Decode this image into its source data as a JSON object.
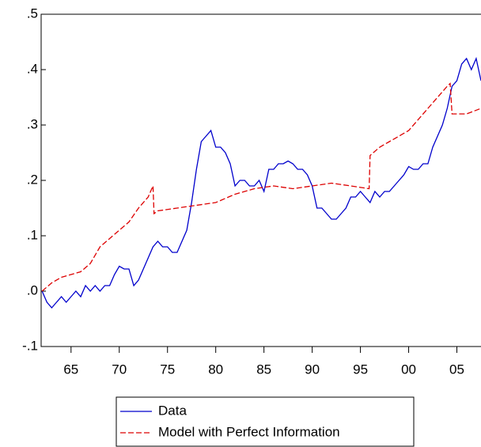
{
  "chart_data": {
    "type": "line",
    "xlim": [
      1961.9,
      2007.5
    ],
    "xticks": [
      {
        "value": 1965,
        "label": "65"
      },
      {
        "value": 1970,
        "label": "70"
      },
      {
        "value": 1975,
        "label": "75"
      },
      {
        "value": 1980,
        "label": "80"
      },
      {
        "value": 1985,
        "label": "85"
      },
      {
        "value": 1990,
        "label": "90"
      },
      {
        "value": 1995,
        "label": "95"
      },
      {
        "value": 2000,
        "label": "00"
      },
      {
        "value": 2005,
        "label": "05"
      }
    ],
    "ylim": [
      -0.1,
      0.5
    ],
    "yticks": [
      {
        "value": -0.1,
        "label": "-.1"
      },
      {
        "value": 0,
        "label": ".0"
      },
      {
        "value": 0.1,
        "label": ".1"
      },
      {
        "value": 0.2,
        "label": ".2"
      },
      {
        "value": 0.3,
        "label": ".3"
      },
      {
        "value": 0.4,
        "label": ".4"
      },
      {
        "value": 0.5,
        "label": ".5"
      }
    ],
    "legend": "bottom",
    "series": [
      {
        "name": "Data",
        "color": "#0000cc",
        "dash": "solid",
        "x": [
          1962,
          1962.5,
          1963,
          1963.5,
          1964,
          1964.5,
          1965,
          1965.5,
          1966,
          1966.5,
          1967,
          1967.5,
          1968,
          1968.5,
          1969,
          1969.5,
          1970,
          1970.5,
          1971,
          1971.5,
          1972,
          1972.5,
          1973,
          1973.5,
          1974,
          1974.5,
          1975,
          1975.5,
          1976,
          1976.5,
          1977,
          1977.5,
          1978,
          1978.5,
          1979,
          1979.5,
          1980,
          1980.5,
          1981,
          1981.5,
          1982,
          1982.5,
          1983,
          1983.5,
          1984,
          1984.5,
          1985,
          1985.5,
          1986,
          1986.5,
          1987,
          1987.5,
          1988,
          1988.5,
          1989,
          1989.5,
          1990,
          1990.5,
          1991,
          1991.5,
          1992,
          1992.5,
          1993,
          1993.5,
          1994,
          1994.5,
          1995,
          1995.5,
          1996,
          1996.5,
          1997,
          1997.5,
          1998,
          1998.5,
          1999,
          1999.5,
          2000,
          2000.5,
          2001,
          2001.5,
          2002,
          2002.5,
          2003,
          2003.5,
          2004,
          2004.5,
          2005,
          2005.5,
          2006,
          2006.5,
          2007,
          2007.5
        ],
        "values": [
          0.0,
          -0.02,
          -0.03,
          -0.02,
          -0.01,
          -0.02,
          -0.01,
          0.0,
          -0.01,
          0.01,
          0.0,
          0.01,
          0.0,
          0.01,
          0.01,
          0.03,
          0.045,
          0.04,
          0.04,
          0.01,
          0.02,
          0.04,
          0.06,
          0.08,
          0.09,
          0.08,
          0.08,
          0.07,
          0.07,
          0.09,
          0.11,
          0.16,
          0.22,
          0.27,
          0.28,
          0.29,
          0.26,
          0.26,
          0.25,
          0.23,
          0.19,
          0.2,
          0.2,
          0.19,
          0.19,
          0.2,
          0.18,
          0.22,
          0.22,
          0.23,
          0.23,
          0.235,
          0.23,
          0.22,
          0.22,
          0.21,
          0.19,
          0.15,
          0.15,
          0.14,
          0.13,
          0.13,
          0.14,
          0.15,
          0.17,
          0.17,
          0.18,
          0.17,
          0.16,
          0.18,
          0.17,
          0.18,
          0.18,
          0.19,
          0.2,
          0.21,
          0.225,
          0.22,
          0.22,
          0.23,
          0.23,
          0.26,
          0.28,
          0.3,
          0.33,
          0.37,
          0.38,
          0.41,
          0.42,
          0.4,
          0.42,
          0.38
        ]
      },
      {
        "name": "Model with Perfect Information",
        "color": "#dd0000",
        "dash": "dashed",
        "x": [
          1962,
          1963,
          1964,
          1965,
          1966,
          1967,
          1968,
          1969,
          1970,
          1971,
          1972,
          1973,
          1973.5,
          1973.6,
          1974,
          1976,
          1978,
          1980,
          1982,
          1984,
          1986,
          1988,
          1990,
          1992,
          1994,
          1995.9,
          1996,
          1997,
          1998,
          2000,
          2002,
          2004,
          2004.3,
          2004.5,
          2006,
          2007.5
        ],
        "values": [
          0.0,
          0.015,
          0.025,
          0.03,
          0.035,
          0.05,
          0.08,
          0.095,
          0.11,
          0.125,
          0.15,
          0.17,
          0.19,
          0.14,
          0.145,
          0.15,
          0.155,
          0.16,
          0.175,
          0.185,
          0.19,
          0.185,
          0.19,
          0.195,
          0.19,
          0.185,
          0.245,
          0.26,
          0.27,
          0.29,
          0.33,
          0.37,
          0.375,
          0.32,
          0.32,
          0.33
        ]
      }
    ]
  }
}
